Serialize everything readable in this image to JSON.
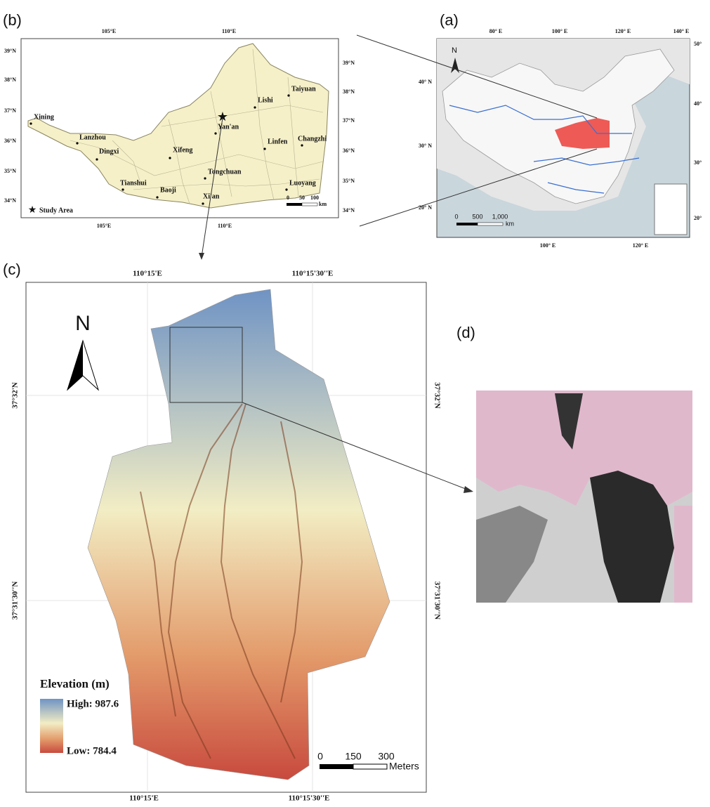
{
  "panel_b": {
    "label": "(b)",
    "top_ticks": [
      "105°E",
      "110°E"
    ],
    "bottom_ticks": [
      "105°E",
      "110°E"
    ],
    "left_ticks": [
      "39°N",
      "38°N",
      "37°N",
      "36°N",
      "35°N",
      "34°N"
    ],
    "right_ticks": [
      "39°N",
      "38°N",
      "37°N",
      "36°N",
      "35°N",
      "34°N"
    ],
    "cities": [
      "Xining",
      "Lanzhou",
      "Dingxi",
      "Xifeng",
      "Tianshui",
      "Baoji",
      "Tongchuan",
      "Xi'an",
      "Yan'an",
      "Lishi",
      "Taiyuan",
      "Linfen",
      "Changzhi",
      "Luoyang"
    ],
    "legend": "Study Area",
    "scale": [
      "0",
      "50",
      "100"
    ],
    "scale_unit": "km"
  },
  "panel_a": {
    "label": "(a)",
    "north": "N",
    "top_ticks": [
      "80° E",
      "100° E",
      "120° E",
      "140° E"
    ],
    "bottom_ticks": [
      "100° E",
      "120° E"
    ],
    "left_ticks": [
      "40° N",
      "30° N",
      "20° N"
    ],
    "right_ticks": [
      "50°",
      "40°",
      "30°",
      "20°"
    ],
    "scale": [
      "0",
      "500",
      "1,000"
    ],
    "scale_unit": "km"
  },
  "panel_c": {
    "label": "(c)",
    "north": "N",
    "top_ticks": [
      "110°15'E",
      "110°15'30''E"
    ],
    "bottom_ticks": [
      "110°15'E",
      "110°15'30''E"
    ],
    "left_ticks": [
      "37°32'N",
      "37°31'30''N"
    ],
    "right_ticks": [
      "37°32'N",
      "37°31'30''N"
    ],
    "legend_title": "Elevation (m)",
    "legend_high": "High: 987.6",
    "legend_low": "Low: 784.4",
    "scale": [
      "0",
      "150",
      "300"
    ],
    "scale_unit": "Meters"
  },
  "panel_d": {
    "label": "(d)"
  }
}
